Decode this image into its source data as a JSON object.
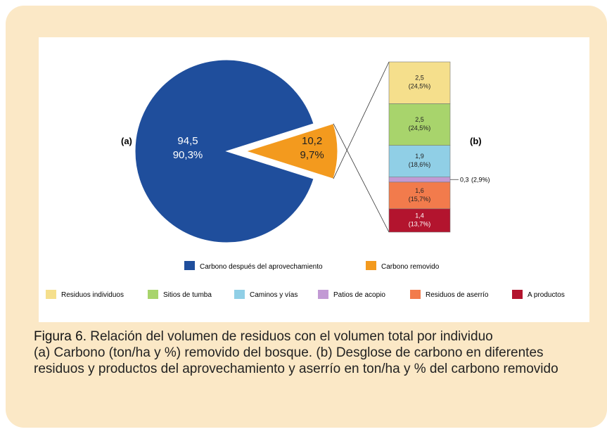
{
  "chart_data": [
    {
      "type": "pie",
      "panel_label": "(a)",
      "categories": [
        "Carbono después del aprovechamiento",
        "Carbono removido"
      ],
      "values": [
        94.5,
        10.2
      ],
      "value_labels": [
        "94,5",
        "10,2"
      ],
      "percents": [
        90.3,
        9.7
      ],
      "percent_labels": [
        "90,3%",
        "9,7%"
      ],
      "colors": [
        "#1f4e9c",
        "#f39a1e"
      ]
    },
    {
      "type": "stacked_bar",
      "panel_label": "(b)",
      "series": [
        {
          "name": "Residuos individuos",
          "color": "#f5df8c",
          "values": [
            2.5
          ],
          "value_labels": [
            "2,5"
          ],
          "percents": [
            24.5
          ],
          "percent_labels": [
            "(24,5%)"
          ]
        },
        {
          "name": "Sitios de tumba",
          "color": "#a8d46c",
          "values": [
            2.5
          ],
          "value_labels": [
            "2,5"
          ],
          "percents": [
            24.5
          ],
          "percent_labels": [
            "(24,5%)"
          ]
        },
        {
          "name": "Caminos y vías",
          "color": "#90cfe6",
          "values": [
            1.9
          ],
          "value_labels": [
            "1,9"
          ],
          "percents": [
            18.6
          ],
          "percent_labels": [
            "(18,6%)"
          ]
        },
        {
          "name": "Patios de acopio",
          "color": "#c29ad4",
          "values": [
            0.3
          ],
          "value_labels": [
            "0,3"
          ],
          "percents": [
            2.9
          ],
          "percent_labels": [
            "(2,9%)"
          ]
        },
        {
          "name": "Residuos de aserrío",
          "color": "#f27b4c",
          "values": [
            1.6
          ],
          "value_labels": [
            "1,6"
          ],
          "percents": [
            15.7
          ],
          "percent_labels": [
            "(15,7%)"
          ]
        },
        {
          "name": "A productos",
          "color": "#b3142e",
          "values": [
            1.4
          ],
          "value_labels": [
            "1,4"
          ],
          "percents": [
            13.7
          ],
          "percent_labels": [
            "(13,7%)"
          ]
        }
      ]
    }
  ],
  "caption": {
    "label": "Figura 6.",
    "title": "Relación del volumen de residuos con el volumen total por individuo",
    "text": "(a) Carbono (ton/ha y %) removido del bosque.  (b) Desglose de carbono en diferentes residuos y productos del aprovechamiento y aserrío en ton/ha y % del carbono removido"
  }
}
